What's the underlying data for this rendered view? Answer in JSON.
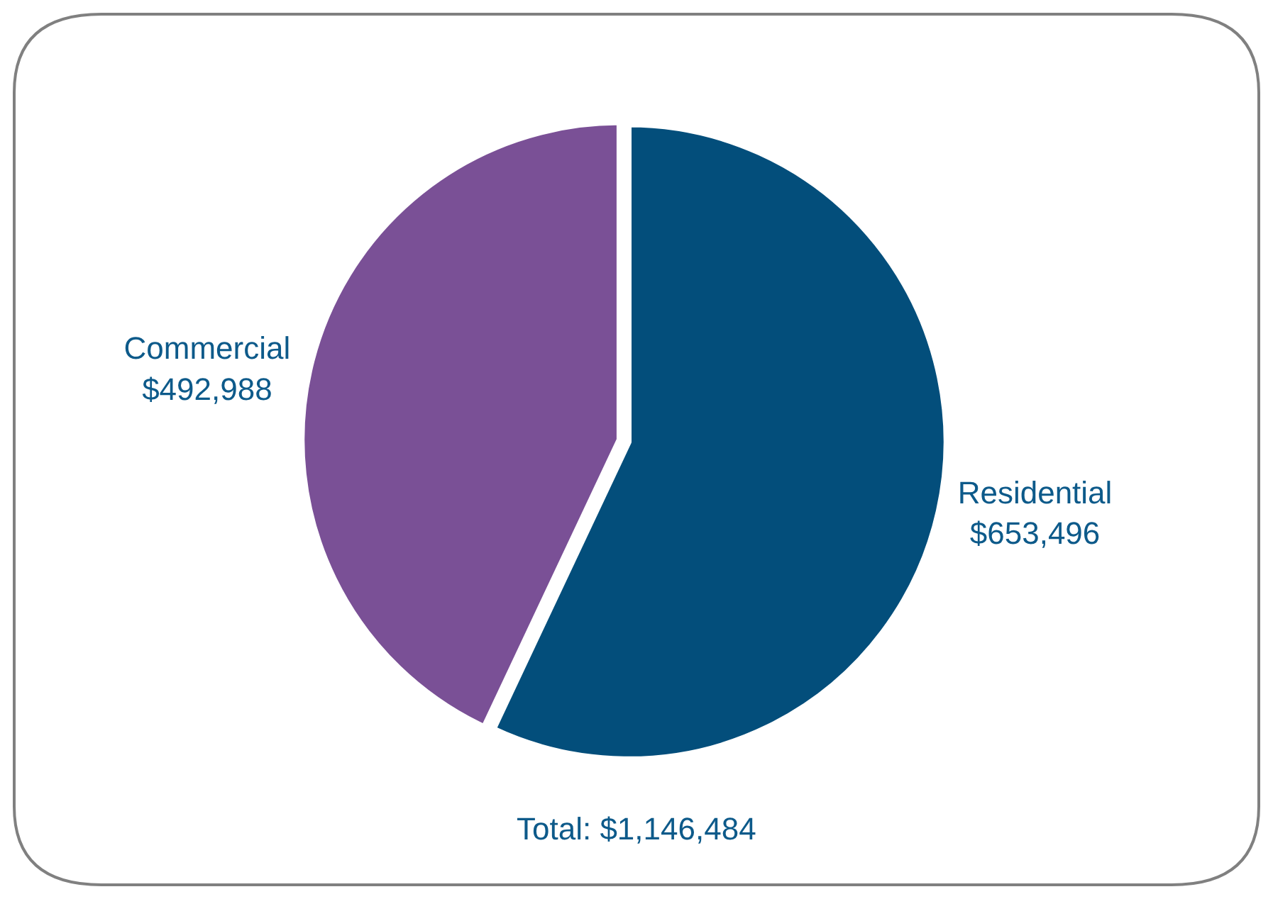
{
  "chart_data": {
    "type": "pie",
    "categories": [
      "Residential",
      "Commercial"
    ],
    "values": [
      653496,
      492988
    ],
    "colors": [
      "#034e7b",
      "#7a5096"
    ],
    "value_labels": [
      "$653,496",
      "$492,988"
    ],
    "annotations": [
      "Total: $1,146,484"
    ],
    "legend": false
  }
}
